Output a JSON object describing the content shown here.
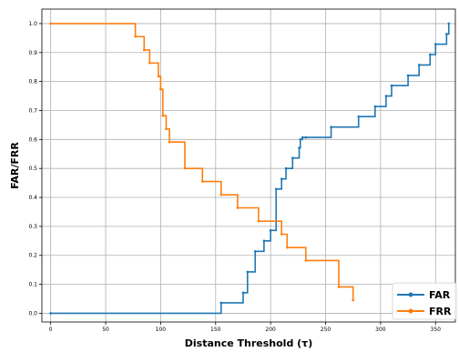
{
  "chart_data": {
    "type": "line",
    "xlabel": "Distance Threshold (τ)",
    "ylabel": "FAR/FRR",
    "xlim": [
      -8,
      368
    ],
    "ylim": [
      -0.03,
      1.05
    ],
    "xticks": [
      0,
      50,
      100,
      150,
      200,
      250,
      300,
      350
    ],
    "yticks": [
      0.0,
      0.1,
      0.2,
      0.3,
      0.4,
      0.5,
      0.6,
      0.7,
      0.8,
      0.9,
      1.0
    ],
    "xtick_labels": [
      "0",
      "50",
      "100",
      "150",
      "200",
      "250",
      "300",
      "350"
    ],
    "ytick_labels": [
      "0.0",
      "0.1",
      "0.2",
      "0.3",
      "0.4",
      "0.5",
      "0.6",
      "0.7",
      "0.8",
      "0.9",
      "1.0"
    ],
    "grid": true,
    "legend_position": "lower-right",
    "series": [
      {
        "name": "FAR",
        "color": "#1f77b4",
        "step": true,
        "x": [
          0,
          155,
          175,
          179,
          186,
          194,
          200,
          205,
          210,
          214,
          220,
          226,
          227,
          229,
          232,
          255,
          280,
          295,
          305,
          310,
          325,
          335,
          345,
          350,
          360,
          362
        ],
        "y": [
          0.0,
          0.036,
          0.071,
          0.143,
          0.214,
          0.25,
          0.286,
          0.429,
          0.464,
          0.5,
          0.536,
          0.571,
          0.6,
          0.607,
          0.607,
          0.643,
          0.679,
          0.714,
          0.75,
          0.786,
          0.821,
          0.857,
          0.893,
          0.929,
          0.964,
          1.0
        ]
      },
      {
        "name": "FRR",
        "color": "#ff7f0e",
        "step": true,
        "x": [
          0,
          77,
          85,
          90,
          98,
          100,
          102,
          105,
          108,
          122,
          138,
          155,
          170,
          189,
          210,
          215,
          232,
          262,
          275
        ],
        "y": [
          1.0,
          0.955,
          0.909,
          0.864,
          0.818,
          0.773,
          0.682,
          0.636,
          0.591,
          0.5,
          0.455,
          0.409,
          0.364,
          0.318,
          0.273,
          0.227,
          0.182,
          0.091,
          0.045
        ]
      }
    ]
  }
}
